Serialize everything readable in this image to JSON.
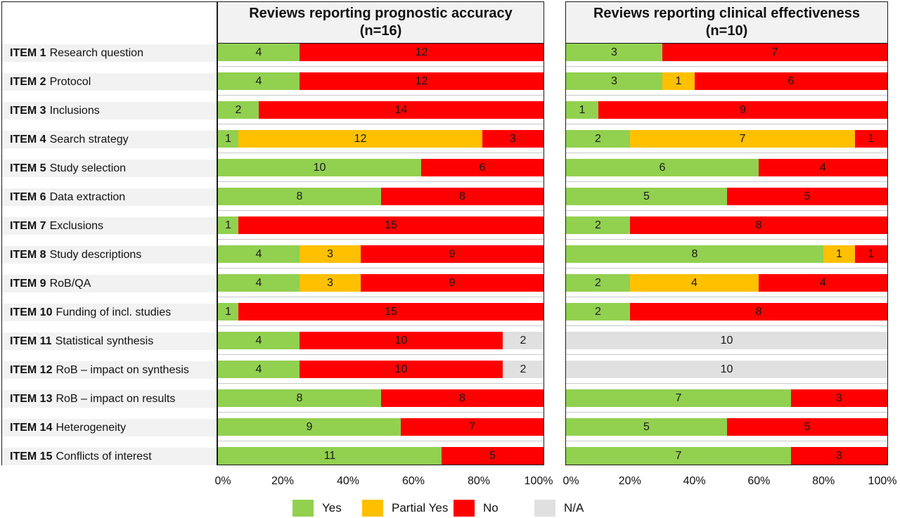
{
  "colors": {
    "Yes": "#92d050",
    "Partial Yes": "#ffc000",
    "No": "#ff0000",
    "N/A": "#e0e0e0"
  },
  "legend": [
    {
      "key": "Yes",
      "label": "Yes"
    },
    {
      "key": "Partial Yes",
      "label": "Partial Yes"
    },
    {
      "key": "No",
      "label": "No"
    },
    {
      "key": "N/A",
      "label": "N/A"
    }
  ],
  "items": [
    {
      "num": "ITEM 1",
      "text": "Research question"
    },
    {
      "num": "ITEM 2",
      "text": "Protocol"
    },
    {
      "num": "ITEM 3",
      "text": "Inclusions"
    },
    {
      "num": "ITEM 4",
      "text": "Search strategy"
    },
    {
      "num": "ITEM 5",
      "text": "Study selection"
    },
    {
      "num": "ITEM 6",
      "text": "Data extraction"
    },
    {
      "num": "ITEM 7",
      "text": "Exclusions"
    },
    {
      "num": "ITEM 8",
      "text": "Study descriptions"
    },
    {
      "num": "ITEM 9",
      "text": "RoB/QA"
    },
    {
      "num": "ITEM 10",
      "text": "Funding of incl. studies"
    },
    {
      "num": "ITEM 11",
      "text": "Statistical synthesis"
    },
    {
      "num": "ITEM 12",
      "text": "RoB – impact on synthesis"
    },
    {
      "num": "ITEM 13",
      "text": "RoB – impact on results"
    },
    {
      "num": "ITEM 14",
      "text": "Heterogeneity"
    },
    {
      "num": "ITEM 15",
      "text": "Conflicts of interest"
    }
  ],
  "chart_data": [
    {
      "type": "bar",
      "stacked": "percent",
      "orientation": "horizontal",
      "title_line1": "Reviews reporting prognostic accuracy",
      "title_line2": "(n=16)",
      "xticks": [
        "0%",
        "20%",
        "40%",
        "60%",
        "80%",
        "100%"
      ],
      "series": [
        {
          "name": "Yes",
          "values": [
            4,
            4,
            2,
            1,
            10,
            8,
            1,
            4,
            4,
            1,
            4,
            4,
            8,
            9,
            11
          ]
        },
        {
          "name": "Partial Yes",
          "values": [
            0,
            0,
            0,
            12,
            0,
            0,
            0,
            3,
            3,
            0,
            0,
            0,
            0,
            0,
            0
          ]
        },
        {
          "name": "No",
          "values": [
            12,
            12,
            14,
            3,
            6,
            8,
            15,
            9,
            9,
            15,
            10,
            10,
            8,
            7,
            5
          ]
        },
        {
          "name": "N/A",
          "values": [
            0,
            0,
            0,
            0,
            0,
            0,
            0,
            0,
            0,
            0,
            2,
            2,
            0,
            0,
            0
          ]
        }
      ]
    },
    {
      "type": "bar",
      "stacked": "percent",
      "orientation": "horizontal",
      "title_line1": "Reviews reporting clinical effectiveness",
      "title_line2": "(n=10)",
      "xticks": [
        "0%",
        "20%",
        "40%",
        "60%",
        "80%",
        "100%"
      ],
      "series": [
        {
          "name": "Yes",
          "values": [
            3,
            3,
            1,
            2,
            6,
            5,
            2,
            8,
            2,
            2,
            0,
            0,
            7,
            5,
            7
          ]
        },
        {
          "name": "Partial Yes",
          "values": [
            0,
            1,
            0,
            7,
            0,
            0,
            0,
            1,
            4,
            0,
            0,
            0,
            0,
            0,
            0
          ]
        },
        {
          "name": "No",
          "values": [
            7,
            6,
            9,
            1,
            4,
            5,
            8,
            1,
            4,
            8,
            0,
            0,
            3,
            5,
            3
          ]
        },
        {
          "name": "N/A",
          "values": [
            0,
            0,
            0,
            0,
            0,
            0,
            0,
            0,
            0,
            0,
            10,
            10,
            0,
            0,
            0
          ]
        }
      ]
    }
  ]
}
